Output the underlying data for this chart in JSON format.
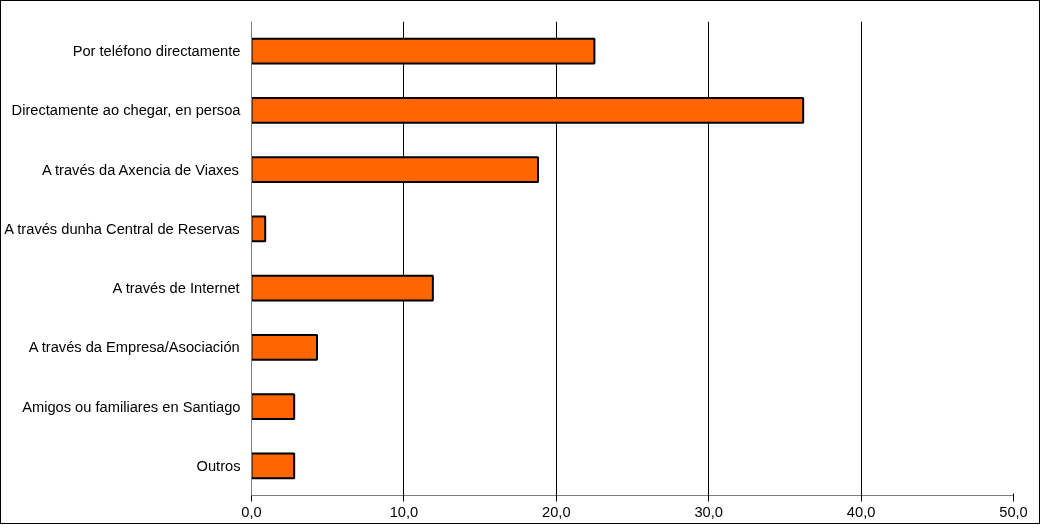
{
  "chart_data": {
    "type": "bar",
    "orientation": "horizontal",
    "categories": [
      "Por teléfono directamente",
      "Directamente ao chegar, en persoa",
      "A través da Axencia de Viaxes",
      "A través dunha Central de Reservas",
      "A través de Internet",
      "A través da Empresa/Asociación",
      "Amigos ou familiares en Santiago",
      "Outros"
    ],
    "values": [
      22.5,
      36.2,
      18.8,
      0.9,
      11.9,
      4.3,
      2.8,
      2.8
    ],
    "color": "#ff6600",
    "xlim": [
      0,
      50
    ],
    "xticks": [
      {
        "value": 0,
        "label": "0,0"
      },
      {
        "value": 10,
        "label": "10,0"
      },
      {
        "value": 20,
        "label": "20,0"
      },
      {
        "value": 30,
        "label": "30,0"
      },
      {
        "value": 40,
        "label": "40,0"
      },
      {
        "value": 50,
        "label": "50,0"
      }
    ],
    "grid": "x"
  }
}
